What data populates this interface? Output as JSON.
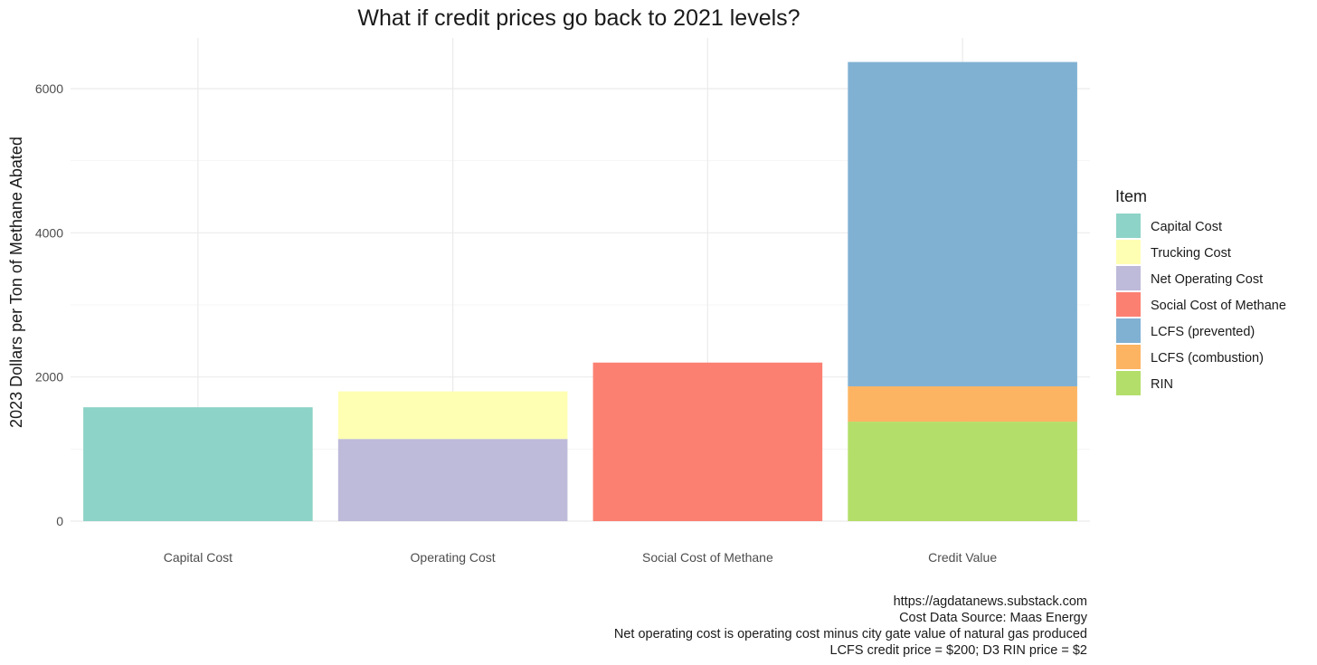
{
  "chart_data": {
    "type": "bar",
    "stacked": true,
    "title": "What if credit prices go back to 2021 levels?",
    "xlabel": "",
    "ylabel": "2023 Dollars per Ton of Methane Abated",
    "categories": [
      "Capital Cost",
      "Operating Cost",
      "Social Cost of Methane",
      "Credit Value"
    ],
    "ylim": [
      0,
      6500
    ],
    "yticks": [
      0,
      2000,
      4000,
      6000
    ],
    "grid": true,
    "legend_title": "Item",
    "legend_position": "right",
    "series": [
      {
        "name": "Capital Cost",
        "color": "#8DD3C7",
        "values": [
          1580,
          0,
          0,
          0
        ]
      },
      {
        "name": "Trucking Cost",
        "color": "#FFFFB3",
        "values": [
          0,
          660,
          0,
          0
        ]
      },
      {
        "name": "Net Operating Cost",
        "color": "#BEBADA",
        "values": [
          0,
          1140,
          0,
          0
        ]
      },
      {
        "name": "Social Cost of Methane",
        "color": "#FB8072",
        "values": [
          0,
          0,
          2200,
          0
        ]
      },
      {
        "name": "LCFS (prevented)",
        "color": "#80B1D3",
        "values": [
          0,
          0,
          0,
          4500
        ]
      },
      {
        "name": "LCFS (combustion)",
        "color": "#FDB462",
        "values": [
          0,
          0,
          0,
          490
        ]
      },
      {
        "name": "RIN",
        "color": "#B3DE69",
        "values": [
          0,
          0,
          0,
          1380
        ]
      }
    ],
    "stack_order": [
      [
        "Capital Cost"
      ],
      [
        "Net Operating Cost",
        "Trucking Cost"
      ],
      [
        "Social Cost of Methane"
      ],
      [
        "RIN",
        "LCFS (combustion)",
        "LCFS (prevented)"
      ]
    ],
    "captions": [
      "https://agdatanews.substack.com",
      "Cost Data Source: Maas Energy",
      "Net operating cost is operating cost minus city gate value of natural gas produced",
      "LCFS credit price = $200; D3 RIN price = $2"
    ]
  }
}
